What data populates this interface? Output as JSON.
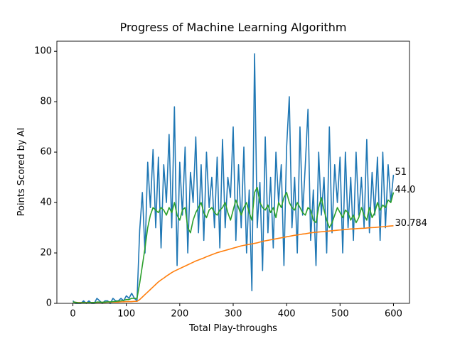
{
  "chart_data": {
    "type": "line",
    "title": "Progress of Machine Learning Algorithm",
    "x_label": "Total Play-throughs",
    "y_label": "Points Scored by AI",
    "x": [
      0,
      5,
      10,
      15,
      20,
      25,
      30,
      35,
      40,
      45,
      50,
      55,
      60,
      65,
      70,
      75,
      80,
      85,
      90,
      95,
      100,
      105,
      110,
      115,
      120,
      125,
      130,
      135,
      140,
      145,
      150,
      155,
      160,
      165,
      170,
      175,
      180,
      185,
      190,
      195,
      200,
      205,
      210,
      215,
      220,
      225,
      230,
      235,
      240,
      245,
      250,
      255,
      260,
      265,
      270,
      275,
      280,
      285,
      290,
      295,
      300,
      305,
      310,
      315,
      320,
      325,
      330,
      335,
      340,
      345,
      350,
      355,
      360,
      365,
      370,
      375,
      380,
      385,
      390,
      395,
      400,
      405,
      410,
      415,
      420,
      425,
      430,
      435,
      440,
      445,
      450,
      455,
      460,
      465,
      470,
      475,
      480,
      485,
      490,
      495,
      500,
      505,
      510,
      515,
      520,
      525,
      530,
      535,
      540,
      545,
      550,
      555,
      560,
      565,
      570,
      575,
      580,
      585,
      590,
      595,
      600
    ],
    "series": [
      {
        "color": "#1f77b4",
        "end_label": "51",
        "values": [
          1,
          0,
          0,
          0,
          1,
          0,
          1,
          0,
          0,
          2,
          1,
          0,
          1,
          1,
          0,
          2,
          1,
          1,
          2,
          1,
          3,
          2,
          4,
          2,
          1,
          29,
          44,
          20,
          56,
          38,
          61,
          30,
          58,
          22,
          55,
          40,
          67,
          30,
          78,
          15,
          56,
          35,
          62,
          20,
          52,
          40,
          66,
          28,
          55,
          25,
          60,
          38,
          50,
          30,
          58,
          22,
          65,
          30,
          50,
          42,
          70,
          25,
          55,
          30,
          62,
          20,
          45,
          5,
          99,
          30,
          48,
          13,
          66,
          28,
          50,
          22,
          60,
          40,
          55,
          15,
          62,
          82,
          30,
          50,
          20,
          70,
          35,
          55,
          77,
          25,
          45,
          15,
          60,
          35,
          50,
          20,
          70,
          28,
          55,
          40,
          58,
          20,
          60,
          30,
          50,
          25,
          60,
          35,
          50,
          30,
          65,
          28,
          52,
          35,
          58,
          25,
          60,
          30,
          55,
          40,
          51
        ]
      },
      {
        "color": "#ff7f0e",
        "end_label": "30.784",
        "values": [
          0.5,
          0.4,
          0.3,
          0.3,
          0.3,
          0.3,
          0.3,
          0.3,
          0.3,
          0.4,
          0.4,
          0.4,
          0.4,
          0.5,
          0.5,
          0.5,
          0.5,
          0.5,
          0.6,
          0.6,
          0.7,
          0.7,
          0.7,
          0.8,
          0.8,
          1.5,
          2.5,
          3.5,
          4.5,
          5.5,
          6.5,
          7.5,
          8.5,
          9.3,
          10,
          10.8,
          11.5,
          12.2,
          12.8,
          13.3,
          13.8,
          14.3,
          14.8,
          15.3,
          15.8,
          16.3,
          16.8,
          17.2,
          17.6,
          18,
          18.5,
          18.9,
          19.3,
          19.7,
          20.1,
          20.4,
          20.7,
          21,
          21.3,
          21.6,
          21.9,
          22.2,
          22.5,
          22.8,
          23,
          23.2,
          23.4,
          23.6,
          23.8,
          24,
          24.3,
          24.6,
          24.8,
          25,
          25.2,
          25.4,
          25.6,
          25.8,
          26,
          26.2,
          26.4,
          26.6,
          26.8,
          27,
          27.1,
          27.3,
          27.5,
          27.6,
          27.8,
          28,
          28.1,
          28.2,
          28.3,
          28.4,
          28.5,
          28.6,
          28.7,
          28.8,
          28.9,
          29,
          29.1,
          29.2,
          29.3,
          29.4,
          29.5,
          29.55,
          29.6,
          29.7,
          29.75,
          29.8,
          29.9,
          30,
          30.05,
          30.1,
          30.2,
          30.3,
          30.4,
          30.5,
          30.6,
          30.7,
          30.784
        ]
      },
      {
        "color": "#2ca02c",
        "end_label": "44.0",
        "values": [
          0.5,
          0.4,
          0.2,
          0.2,
          0.3,
          0.2,
          0.3,
          0.3,
          0.3,
          0.5,
          0.5,
          0.4,
          0.5,
          0.6,
          0.6,
          0.7,
          0.8,
          0.9,
          1,
          1.2,
          1.5,
          1.5,
          2,
          2,
          2,
          8,
          15,
          22,
          30,
          35,
          38,
          37,
          36,
          38,
          37,
          35,
          38,
          36,
          40,
          35,
          33,
          37,
          38,
          30,
          28,
          33,
          36,
          38,
          40,
          36,
          34,
          37,
          38,
          36,
          35,
          37,
          38,
          40,
          36,
          33,
          37,
          41,
          38,
          35,
          38,
          40,
          36,
          33,
          44,
          46,
          40,
          38,
          37,
          39,
          36,
          38,
          34,
          40,
          38,
          42,
          44,
          40,
          38,
          37,
          40,
          38,
          36,
          35,
          38,
          37,
          33,
          32,
          38,
          42,
          37,
          33,
          30,
          32,
          35,
          38,
          36,
          34,
          37,
          36,
          33,
          35,
          32,
          34,
          38,
          35,
          33,
          38,
          34,
          36,
          40,
          37,
          39,
          38,
          41,
          40,
          44
        ]
      }
    ],
    "xlim": [
      -30,
      630
    ],
    "ylim": [
      0,
      104
    ],
    "xticks": [
      0,
      100,
      200,
      300,
      400,
      500,
      600
    ],
    "yticks": [
      0,
      20,
      40,
      60,
      80,
      100
    ]
  }
}
